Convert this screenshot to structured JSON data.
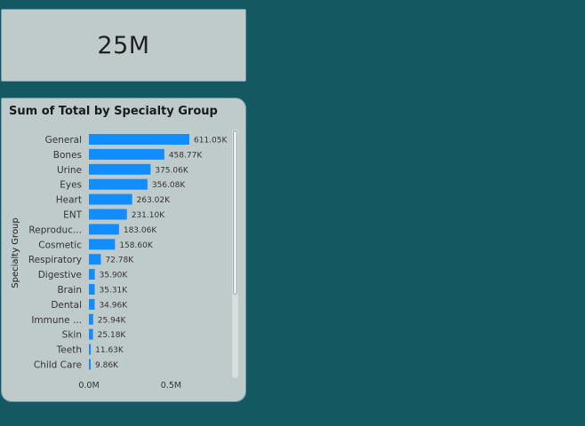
{
  "kpi_card": {
    "value": "25M"
  },
  "chart_data": {
    "type": "bar",
    "orientation": "horizontal",
    "title": "Sum of Total by Specialty Group",
    "ylabel": "Specialty Group",
    "xlabel": "",
    "categories": [
      "General",
      "Bones",
      "Urine",
      "Eyes",
      "Heart",
      "ENT",
      "Reproduc...",
      "Cosmetic",
      "Respiratory",
      "Digestive",
      "Brain",
      "Dental",
      "Immune ...",
      "Skin",
      "Teeth",
      "Child Care"
    ],
    "values": [
      611050,
      458770,
      375060,
      356080,
      263020,
      231100,
      183060,
      158600,
      72780,
      35900,
      35310,
      34960,
      25940,
      25180,
      11630,
      9860
    ],
    "data_labels": [
      "611.05K",
      "458.77K",
      "375.06K",
      "356.08K",
      "263.02K",
      "231.10K",
      "183.06K",
      "158.60K",
      "72.78K",
      "35.90K",
      "35.31K",
      "34.96K",
      "25.94K",
      "25.18K",
      "11.63K",
      "9.86K"
    ],
    "x_ticks": [
      0,
      500000
    ],
    "x_tick_labels": [
      "0.0M",
      "0.5M"
    ],
    "xlim": [
      0,
      700000
    ],
    "grid": false,
    "bar_color": "#118dff"
  }
}
